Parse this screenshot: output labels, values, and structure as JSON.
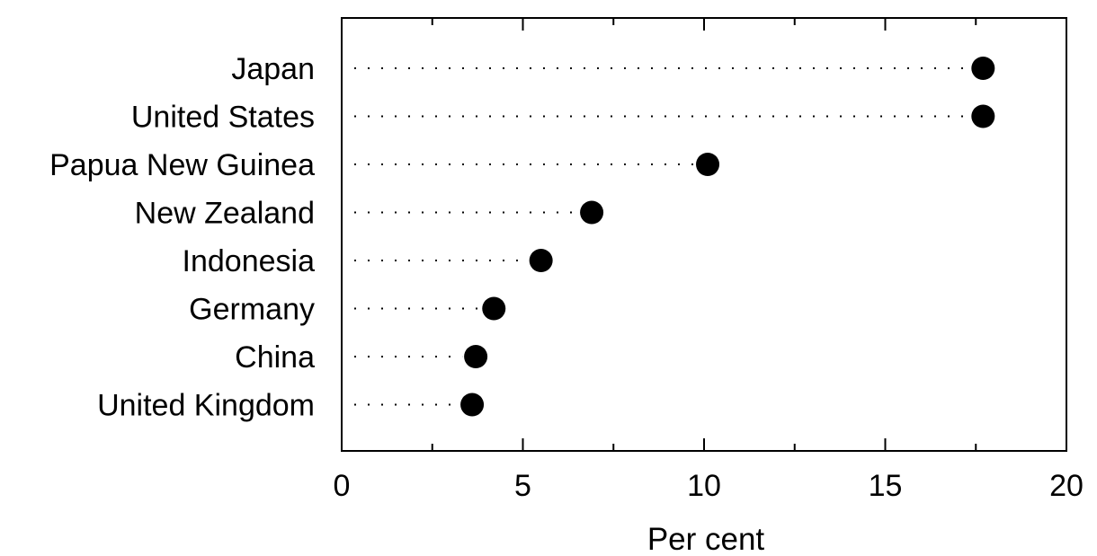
{
  "chart_data": {
    "type": "dot",
    "categories": [
      "Japan",
      "United States",
      "Papua New Guinea",
      "New Zealand",
      "Indonesia",
      "Germany",
      "China",
      "United Kingdom"
    ],
    "values": [
      17.7,
      17.7,
      10.1,
      6.9,
      5.5,
      4.2,
      3.7,
      3.6
    ],
    "title": "",
    "xlabel": "Per cent",
    "ylabel": "",
    "xlim": [
      0,
      20
    ],
    "xticks": [
      0,
      5,
      10,
      15,
      20
    ],
    "x_minor_step": 2.5,
    "grid": false,
    "leader_lines": "dotted",
    "colors": {
      "marker": "#000000",
      "axis": "#000000",
      "leader": "#000000",
      "background": "#ffffff"
    }
  }
}
